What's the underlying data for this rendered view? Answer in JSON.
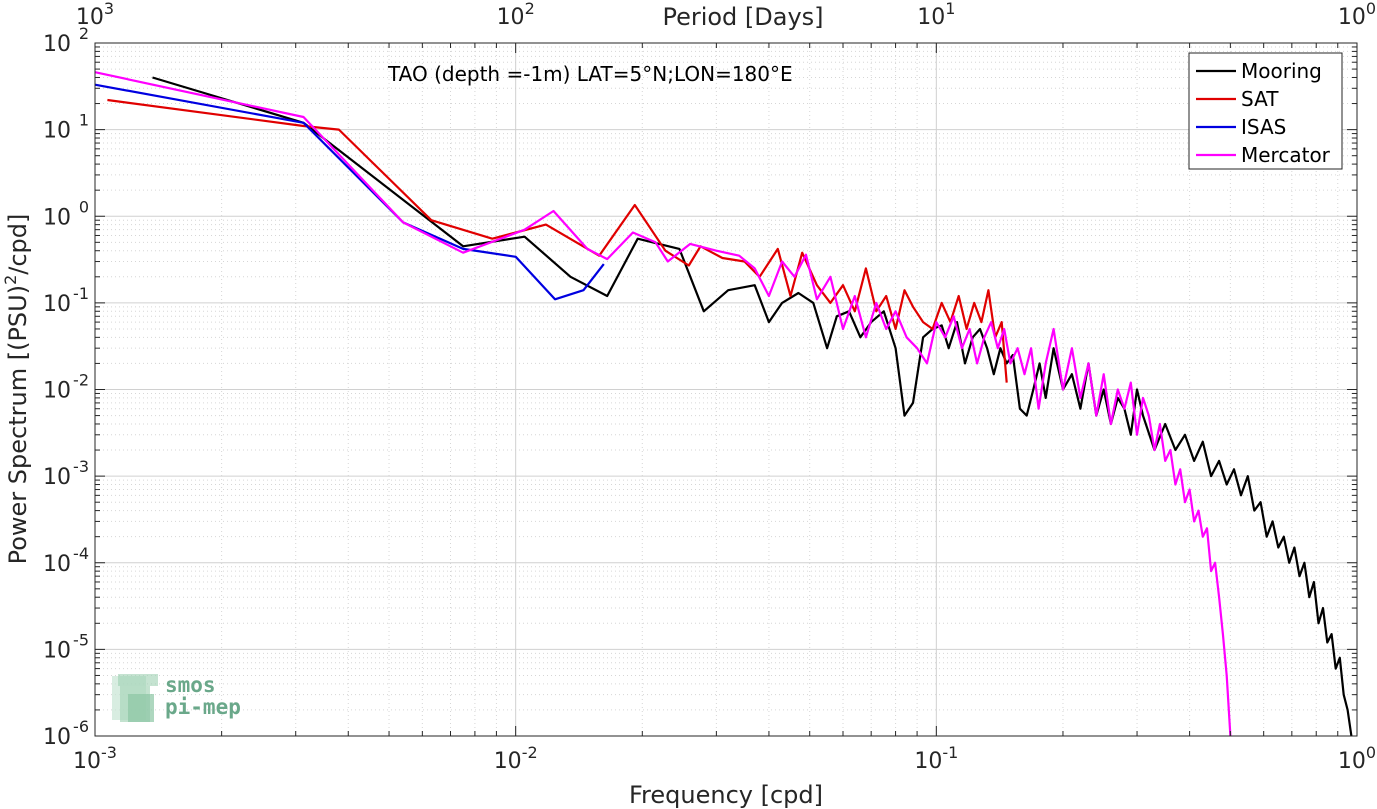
{
  "chart_data": {
    "type": "line",
    "title": "TAO (depth =-1m) LAT=5°N;LON=180°E",
    "xlabel": "Frequency [cpd]",
    "ylabel": "Power Spectrum [(PSU)²/cpd]",
    "ylabel_parts": [
      "Power Spectrum [(PSU)",
      "2",
      "/cpd]"
    ],
    "top_xlabel": "Period [Days]",
    "xscale": "log",
    "yscale": "log",
    "xlim": [
      0.001,
      1
    ],
    "ylim": [
      1e-06,
      100
    ],
    "grid": true,
    "legend_position": "top-right",
    "x_ticks": [
      {
        "value": 0.001,
        "base": "10",
        "exp": "-3"
      },
      {
        "value": 0.01,
        "base": "10",
        "exp": "-2"
      },
      {
        "value": 0.1,
        "base": "10",
        "exp": "-1"
      },
      {
        "value": 1,
        "base": "10",
        "exp": "0"
      }
    ],
    "y_ticks": [
      {
        "value": 1e-06,
        "base": "10",
        "exp": "-6"
      },
      {
        "value": 1e-05,
        "base": "10",
        "exp": "-5"
      },
      {
        "value": 0.0001,
        "base": "10",
        "exp": "-4"
      },
      {
        "value": 0.001,
        "base": "10",
        "exp": "-3"
      },
      {
        "value": 0.01,
        "base": "10",
        "exp": "-2"
      },
      {
        "value": 0.1,
        "base": "10",
        "exp": "-1"
      },
      {
        "value": 1,
        "base": "10",
        "exp": "0"
      },
      {
        "value": 10,
        "base": "10",
        "exp": "1"
      },
      {
        "value": 100,
        "base": "10",
        "exp": "2"
      }
    ],
    "top_ticks": [
      {
        "frequency": 0.001,
        "base": "10",
        "exp": "3"
      },
      {
        "frequency": 0.01,
        "base": "10",
        "exp": "2"
      },
      {
        "frequency": 0.1,
        "base": "10",
        "exp": "1"
      },
      {
        "frequency": 1,
        "base": "10",
        "exp": "0"
      }
    ],
    "series": [
      {
        "name": "Mooring",
        "color": "#000000",
        "points": [
          [
            0.00137,
            40
          ],
          [
            0.00313,
            12
          ],
          [
            0.0075,
            0.45
          ],
          [
            0.0105,
            0.58
          ],
          [
            0.0135,
            0.2
          ],
          [
            0.0165,
            0.12
          ],
          [
            0.0195,
            0.55
          ],
          [
            0.0245,
            0.42
          ],
          [
            0.028,
            0.08
          ],
          [
            0.032,
            0.14
          ],
          [
            0.037,
            0.16
          ],
          [
            0.04,
            0.06
          ],
          [
            0.043,
            0.1
          ],
          [
            0.047,
            0.13
          ],
          [
            0.051,
            0.1
          ],
          [
            0.055,
            0.03
          ],
          [
            0.058,
            0.07
          ],
          [
            0.062,
            0.08
          ],
          [
            0.066,
            0.04
          ],
          [
            0.07,
            0.06
          ],
          [
            0.075,
            0.08
          ],
          [
            0.08,
            0.03
          ],
          [
            0.084,
            0.005
          ],
          [
            0.088,
            0.007
          ],
          [
            0.093,
            0.04
          ],
          [
            0.098,
            0.05
          ],
          [
            0.103,
            0.055
          ],
          [
            0.107,
            0.03
          ],
          [
            0.112,
            0.06
          ],
          [
            0.117,
            0.02
          ],
          [
            0.122,
            0.04
          ],
          [
            0.127,
            0.05
          ],
          [
            0.132,
            0.03
          ],
          [
            0.137,
            0.015
          ],
          [
            0.142,
            0.03
          ],
          [
            0.147,
            0.02
          ],
          [
            0.152,
            0.025
          ],
          [
            0.158,
            0.006
          ],
          [
            0.164,
            0.005
          ],
          [
            0.17,
            0.01
          ],
          [
            0.176,
            0.02
          ],
          [
            0.182,
            0.008
          ],
          [
            0.19,
            0.03
          ],
          [
            0.2,
            0.01
          ],
          [
            0.21,
            0.015
          ],
          [
            0.22,
            0.006
          ],
          [
            0.23,
            0.02
          ],
          [
            0.24,
            0.005
          ],
          [
            0.25,
            0.01
          ],
          [
            0.26,
            0.004
          ],
          [
            0.27,
            0.008
          ],
          [
            0.28,
            0.006
          ],
          [
            0.29,
            0.003
          ],
          [
            0.3,
            0.01
          ],
          [
            0.31,
            0.005
          ],
          [
            0.33,
            0.002
          ],
          [
            0.35,
            0.004
          ],
          [
            0.37,
            0.002
          ],
          [
            0.39,
            0.003
          ],
          [
            0.41,
            0.0015
          ],
          [
            0.43,
            0.0025
          ],
          [
            0.45,
            0.001
          ],
          [
            0.47,
            0.0015
          ],
          [
            0.49,
            0.0008
          ],
          [
            0.51,
            0.0012
          ],
          [
            0.53,
            0.0006
          ],
          [
            0.55,
            0.001
          ],
          [
            0.57,
            0.0004
          ],
          [
            0.59,
            0.0005
          ],
          [
            0.61,
            0.0002
          ],
          [
            0.63,
            0.0003
          ],
          [
            0.65,
            0.00015
          ],
          [
            0.67,
            0.0002
          ],
          [
            0.69,
            0.0001
          ],
          [
            0.71,
            0.00015
          ],
          [
            0.73,
            7e-05
          ],
          [
            0.75,
            0.0001
          ],
          [
            0.77,
            4e-05
          ],
          [
            0.79,
            6e-05
          ],
          [
            0.81,
            2e-05
          ],
          [
            0.83,
            3e-05
          ],
          [
            0.85,
            1.2e-05
          ],
          [
            0.87,
            1.5e-05
          ],
          [
            0.89,
            6e-06
          ],
          [
            0.91,
            8e-06
          ],
          [
            0.93,
            3e-06
          ],
          [
            0.95,
            2e-06
          ],
          [
            0.97,
            1e-06
          ]
        ]
      },
      {
        "name": "SAT",
        "color": "#e00000",
        "points": [
          [
            0.00107,
            22
          ],
          [
            0.00313,
            11
          ],
          [
            0.0038,
            10
          ],
          [
            0.0063,
            0.9
          ],
          [
            0.0088,
            0.55
          ],
          [
            0.0118,
            0.8
          ],
          [
            0.0158,
            0.35
          ],
          [
            0.0192,
            1.35
          ],
          [
            0.0227,
            0.4
          ],
          [
            0.0258,
            0.27
          ],
          [
            0.0275,
            0.45
          ],
          [
            0.031,
            0.33
          ],
          [
            0.035,
            0.3
          ],
          [
            0.038,
            0.2
          ],
          [
            0.042,
            0.42
          ],
          [
            0.045,
            0.12
          ],
          [
            0.048,
            0.38
          ],
          [
            0.052,
            0.16
          ],
          [
            0.056,
            0.1
          ],
          [
            0.06,
            0.16
          ],
          [
            0.064,
            0.08
          ],
          [
            0.068,
            0.25
          ],
          [
            0.072,
            0.08
          ],
          [
            0.076,
            0.12
          ],
          [
            0.08,
            0.05
          ],
          [
            0.084,
            0.14
          ],
          [
            0.088,
            0.09
          ],
          [
            0.093,
            0.06
          ],
          [
            0.098,
            0.05
          ],
          [
            0.103,
            0.1
          ],
          [
            0.108,
            0.06
          ],
          [
            0.113,
            0.12
          ],
          [
            0.118,
            0.05
          ],
          [
            0.123,
            0.1
          ],
          [
            0.128,
            0.06
          ],
          [
            0.133,
            0.14
          ],
          [
            0.138,
            0.04
          ],
          [
            0.143,
            0.06
          ],
          [
            0.147,
            0.012
          ]
        ]
      },
      {
        "name": "ISAS",
        "color": "#0000e0",
        "points": [
          [
            0.001,
            33
          ],
          [
            0.00313,
            12
          ],
          [
            0.0054,
            0.85
          ],
          [
            0.0075,
            0.42
          ],
          [
            0.01,
            0.34
          ],
          [
            0.0124,
            0.11
          ],
          [
            0.0145,
            0.14
          ],
          [
            0.0162,
            0.28
          ]
        ]
      },
      {
        "name": "Mercator",
        "color": "#ff00ff",
        "points": [
          [
            0.001,
            46
          ],
          [
            0.00313,
            14
          ],
          [
            0.0054,
            0.85
          ],
          [
            0.0075,
            0.38
          ],
          [
            0.0105,
            0.7
          ],
          [
            0.0123,
            1.15
          ],
          [
            0.0148,
            0.42
          ],
          [
            0.0165,
            0.32
          ],
          [
            0.019,
            0.65
          ],
          [
            0.0215,
            0.5
          ],
          [
            0.023,
            0.3
          ],
          [
            0.026,
            0.48
          ],
          [
            0.03,
            0.4
          ],
          [
            0.034,
            0.35
          ],
          [
            0.037,
            0.25
          ],
          [
            0.04,
            0.12
          ],
          [
            0.043,
            0.3
          ],
          [
            0.046,
            0.2
          ],
          [
            0.049,
            0.36
          ],
          [
            0.052,
            0.11
          ],
          [
            0.056,
            0.2
          ],
          [
            0.06,
            0.05
          ],
          [
            0.064,
            0.12
          ],
          [
            0.068,
            0.04
          ],
          [
            0.072,
            0.1
          ],
          [
            0.076,
            0.05
          ],
          [
            0.08,
            0.08
          ],
          [
            0.085,
            0.04
          ],
          [
            0.09,
            0.03
          ],
          [
            0.095,
            0.02
          ],
          [
            0.1,
            0.06
          ],
          [
            0.105,
            0.04
          ],
          [
            0.11,
            0.07
          ],
          [
            0.115,
            0.03
          ],
          [
            0.12,
            0.05
          ],
          [
            0.125,
            0.02
          ],
          [
            0.13,
            0.04
          ],
          [
            0.135,
            0.06
          ],
          [
            0.14,
            0.03
          ],
          [
            0.145,
            0.05
          ],
          [
            0.15,
            0.02
          ],
          [
            0.156,
            0.03
          ],
          [
            0.162,
            0.015
          ],
          [
            0.168,
            0.03
          ],
          [
            0.175,
            0.006
          ],
          [
            0.182,
            0.02
          ],
          [
            0.19,
            0.05
          ],
          [
            0.2,
            0.01
          ],
          [
            0.21,
            0.03
          ],
          [
            0.22,
            0.008
          ],
          [
            0.23,
            0.02
          ],
          [
            0.24,
            0.005
          ],
          [
            0.25,
            0.015
          ],
          [
            0.26,
            0.004
          ],
          [
            0.27,
            0.01
          ],
          [
            0.28,
            0.006
          ],
          [
            0.29,
            0.012
          ],
          [
            0.3,
            0.003
          ],
          [
            0.31,
            0.008
          ],
          [
            0.32,
            0.005
          ],
          [
            0.33,
            0.002
          ],
          [
            0.34,
            0.004
          ],
          [
            0.35,
            0.0015
          ],
          [
            0.36,
            0.002
          ],
          [
            0.37,
            0.0008
          ],
          [
            0.38,
            0.0012
          ],
          [
            0.39,
            0.0005
          ],
          [
            0.4,
            0.0007
          ],
          [
            0.41,
            0.0003
          ],
          [
            0.42,
            0.0004
          ],
          [
            0.43,
            0.0002
          ],
          [
            0.44,
            0.00025
          ],
          [
            0.45,
            8e-05
          ],
          [
            0.46,
            0.0001
          ],
          [
            0.47,
            4e-05
          ],
          [
            0.48,
            1.5e-05
          ],
          [
            0.49,
            5e-06
          ],
          [
            0.5,
            1e-06
          ]
        ]
      }
    ]
  },
  "watermark": {
    "line1": "smos",
    "line2": "pi-mep"
  }
}
